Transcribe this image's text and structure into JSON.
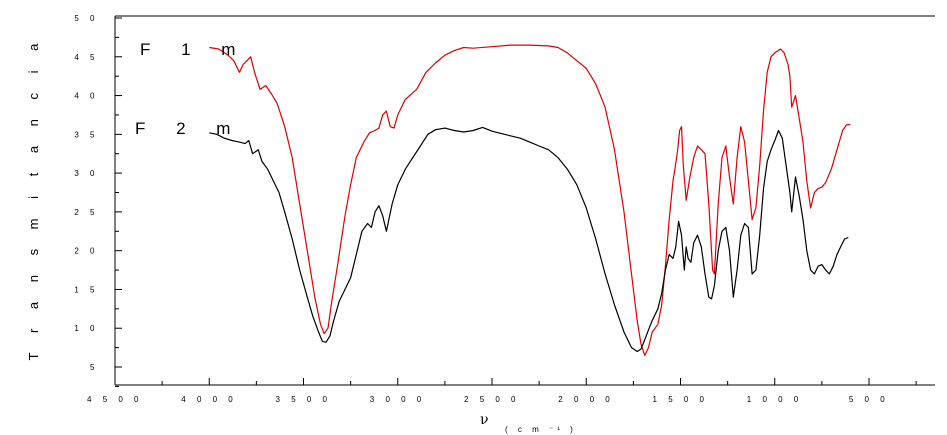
{
  "chart_data": {
    "type": "line",
    "title": "",
    "xlabel": "ν",
    "xlabel_unit": "( c m  ⁻¹ )",
    "ylabel": "T r a n s m i t a n c i a",
    "xlim": [
      4500,
      150
    ],
    "ylim": [
      0,
      50
    ],
    "x_reversed": true,
    "xticks": [
      4500,
      4000,
      3500,
      3000,
      2500,
      2000,
      1500,
      1000,
      500
    ],
    "xtick_labels": [
      "4 5 0 0",
      "4 0 0 0",
      "3 5 0 0",
      "3 0 0 0",
      "2 5 0 0",
      "2 0 0 0",
      "1 5 0 0",
      "1 0 0 0",
      "5 0 0"
    ],
    "yticks": [
      5,
      10,
      15,
      20,
      25,
      30,
      35,
      40,
      45,
      50
    ],
    "ytick_labels": [
      "5",
      "1 0",
      "1 5",
      "2 0",
      "2 5",
      "3 0",
      "3 5",
      "4 0",
      "4 5",
      "5 0"
    ],
    "grid": false,
    "series": [
      {
        "name": "F 1 m",
        "color": "#dd0000",
        "points": [
          [
            4000,
            46.2
          ],
          [
            3950,
            46.0
          ],
          [
            3900,
            45.2
          ],
          [
            3870,
            44.5
          ],
          [
            3840,
            43.0
          ],
          [
            3820,
            44.0
          ],
          [
            3780,
            45.0
          ],
          [
            3760,
            43.0
          ],
          [
            3730,
            40.8
          ],
          [
            3700,
            41.3
          ],
          [
            3670,
            40.2
          ],
          [
            3640,
            39.0
          ],
          [
            3600,
            36.0
          ],
          [
            3560,
            32.0
          ],
          [
            3520,
            26.0
          ],
          [
            3480,
            20.0
          ],
          [
            3440,
            14.0
          ],
          [
            3410,
            10.5
          ],
          [
            3390,
            9.3
          ],
          [
            3370,
            10.0
          ],
          [
            3350,
            13.5
          ],
          [
            3320,
            18.0
          ],
          [
            3280,
            24.5
          ],
          [
            3250,
            28.5
          ],
          [
            3220,
            32.0
          ],
          [
            3180,
            34.0
          ],
          [
            3150,
            35.2
          ],
          [
            3120,
            35.5
          ],
          [
            3100,
            35.8
          ],
          [
            3080,
            37.5
          ],
          [
            3060,
            38.0
          ],
          [
            3040,
            36.0
          ],
          [
            3020,
            35.8
          ],
          [
            3000,
            37.5
          ],
          [
            2960,
            39.5
          ],
          [
            2900,
            40.8
          ],
          [
            2850,
            43.0
          ],
          [
            2800,
            44.2
          ],
          [
            2750,
            45.2
          ],
          [
            2700,
            45.8
          ],
          [
            2650,
            46.2
          ],
          [
            2600,
            46.1
          ],
          [
            2500,
            46.3
          ],
          [
            2400,
            46.5
          ],
          [
            2300,
            46.5
          ],
          [
            2200,
            46.4
          ],
          [
            2150,
            46.2
          ],
          [
            2100,
            45.5
          ],
          [
            2050,
            44.5
          ],
          [
            2000,
            43.5
          ],
          [
            1950,
            41.5
          ],
          [
            1900,
            38.5
          ],
          [
            1850,
            33.0
          ],
          [
            1800,
            25.0
          ],
          [
            1760,
            17.0
          ],
          [
            1730,
            11.0
          ],
          [
            1710,
            8.0
          ],
          [
            1690,
            6.5
          ],
          [
            1670,
            7.5
          ],
          [
            1650,
            9.5
          ],
          [
            1620,
            10.5
          ],
          [
            1600,
            13.0
          ],
          [
            1580,
            18.0
          ],
          [
            1560,
            24.0
          ],
          [
            1540,
            29.0
          ],
          [
            1530,
            30.5
          ],
          [
            1515,
            33.0
          ],
          [
            1505,
            35.5
          ],
          [
            1495,
            36.0
          ],
          [
            1485,
            31.0
          ],
          [
            1470,
            26.5
          ],
          [
            1450,
            29.5
          ],
          [
            1430,
            32.0
          ],
          [
            1410,
            33.5
          ],
          [
            1390,
            33.0
          ],
          [
            1370,
            32.5
          ],
          [
            1350,
            26.0
          ],
          [
            1330,
            17.5
          ],
          [
            1320,
            17.0
          ],
          [
            1300,
            26.0
          ],
          [
            1280,
            32.0
          ],
          [
            1260,
            33.5
          ],
          [
            1240,
            29.5
          ],
          [
            1220,
            26.0
          ],
          [
            1200,
            32.0
          ],
          [
            1180,
            36.0
          ],
          [
            1160,
            34.0
          ],
          [
            1140,
            29.0
          ],
          [
            1120,
            24.0
          ],
          [
            1100,
            25.5
          ],
          [
            1080,
            31.0
          ],
          [
            1060,
            38.0
          ],
          [
            1040,
            43.0
          ],
          [
            1020,
            45.0
          ],
          [
            1000,
            45.5
          ],
          [
            970,
            46.0
          ],
          [
            950,
            45.5
          ],
          [
            930,
            44.0
          ],
          [
            920,
            42.5
          ],
          [
            910,
            38.5
          ],
          [
            890,
            40.0
          ],
          [
            870,
            37.0
          ],
          [
            850,
            34.0
          ],
          [
            830,
            29.0
          ],
          [
            810,
            25.5
          ],
          [
            790,
            27.5
          ],
          [
            770,
            28.0
          ],
          [
            750,
            28.2
          ],
          [
            730,
            28.8
          ],
          [
            700,
            30.5
          ],
          [
            670,
            33.0
          ],
          [
            640,
            35.5
          ],
          [
            620,
            36.2
          ],
          [
            600,
            36.3
          ]
        ]
      },
      {
        "name": "F 2 m",
        "color": "#000000",
        "points": [
          [
            4000,
            35.2
          ],
          [
            3960,
            35.0
          ],
          [
            3920,
            34.5
          ],
          [
            3880,
            34.2
          ],
          [
            3840,
            34.0
          ],
          [
            3810,
            33.8
          ],
          [
            3790,
            34.2
          ],
          [
            3770,
            32.5
          ],
          [
            3740,
            33.0
          ],
          [
            3720,
            31.5
          ],
          [
            3690,
            30.5
          ],
          [
            3660,
            29.0
          ],
          [
            3630,
            27.5
          ],
          [
            3600,
            25.0
          ],
          [
            3560,
            21.5
          ],
          [
            3520,
            17.5
          ],
          [
            3480,
            14.0
          ],
          [
            3450,
            11.5
          ],
          [
            3420,
            9.5
          ],
          [
            3400,
            8.3
          ],
          [
            3380,
            8.2
          ],
          [
            3360,
            9.0
          ],
          [
            3340,
            11.0
          ],
          [
            3310,
            13.5
          ],
          [
            3280,
            15.0
          ],
          [
            3250,
            16.5
          ],
          [
            3220,
            19.5
          ],
          [
            3190,
            22.5
          ],
          [
            3160,
            23.5
          ],
          [
            3140,
            23.0
          ],
          [
            3120,
            25.0
          ],
          [
            3100,
            25.8
          ],
          [
            3080,
            24.5
          ],
          [
            3060,
            22.5
          ],
          [
            3030,
            26.0
          ],
          [
            3000,
            28.5
          ],
          [
            2960,
            30.5
          ],
          [
            2920,
            32.0
          ],
          [
            2880,
            33.5
          ],
          [
            2840,
            35.0
          ],
          [
            2800,
            35.6
          ],
          [
            2750,
            35.8
          ],
          [
            2700,
            35.5
          ],
          [
            2650,
            35.3
          ],
          [
            2600,
            35.5
          ],
          [
            2550,
            35.9
          ],
          [
            2500,
            35.4
          ],
          [
            2450,
            35.1
          ],
          [
            2400,
            34.8
          ],
          [
            2350,
            34.5
          ],
          [
            2300,
            34.0
          ],
          [
            2250,
            33.5
          ],
          [
            2200,
            33.0
          ],
          [
            2150,
            32.0
          ],
          [
            2100,
            30.5
          ],
          [
            2050,
            28.5
          ],
          [
            2000,
            25.5
          ],
          [
            1950,
            21.5
          ],
          [
            1900,
            17.0
          ],
          [
            1850,
            13.0
          ],
          [
            1800,
            9.5
          ],
          [
            1760,
            7.5
          ],
          [
            1730,
            7.0
          ],
          [
            1710,
            7.3
          ],
          [
            1690,
            8.5
          ],
          [
            1670,
            9.8
          ],
          [
            1650,
            11.0
          ],
          [
            1620,
            12.5
          ],
          [
            1600,
            14.5
          ],
          [
            1580,
            17.5
          ],
          [
            1560,
            19.5
          ],
          [
            1540,
            19.0
          ],
          [
            1525,
            20.5
          ],
          [
            1510,
            23.8
          ],
          [
            1495,
            22.0
          ],
          [
            1480,
            17.5
          ],
          [
            1470,
            20.5
          ],
          [
            1460,
            19.0
          ],
          [
            1445,
            18.5
          ],
          [
            1430,
            21.0
          ],
          [
            1410,
            22.0
          ],
          [
            1390,
            20.5
          ],
          [
            1370,
            17.0
          ],
          [
            1350,
            14.0
          ],
          [
            1335,
            13.8
          ],
          [
            1320,
            15.5
          ],
          [
            1300,
            20.0
          ],
          [
            1280,
            22.5
          ],
          [
            1260,
            23.0
          ],
          [
            1240,
            20.0
          ],
          [
            1220,
            14.0
          ],
          [
            1200,
            17.5
          ],
          [
            1180,
            22.0
          ],
          [
            1160,
            23.5
          ],
          [
            1140,
            23.0
          ],
          [
            1120,
            17.0
          ],
          [
            1100,
            17.5
          ],
          [
            1080,
            22.0
          ],
          [
            1060,
            28.0
          ],
          [
            1040,
            31.5
          ],
          [
            1020,
            33.0
          ],
          [
            1000,
            34.2
          ],
          [
            980,
            35.5
          ],
          [
            960,
            34.5
          ],
          [
            940,
            31.0
          ],
          [
            920,
            27.5
          ],
          [
            910,
            25.0
          ],
          [
            890,
            29.5
          ],
          [
            870,
            27.0
          ],
          [
            850,
            24.0
          ],
          [
            830,
            20.0
          ],
          [
            810,
            17.5
          ],
          [
            790,
            17.0
          ],
          [
            770,
            18.0
          ],
          [
            750,
            18.2
          ],
          [
            730,
            17.5
          ],
          [
            710,
            17.0
          ],
          [
            690,
            18.0
          ],
          [
            670,
            19.5
          ],
          [
            650,
            20.5
          ],
          [
            630,
            21.5
          ],
          [
            610,
            21.7
          ]
        ]
      }
    ]
  }
}
